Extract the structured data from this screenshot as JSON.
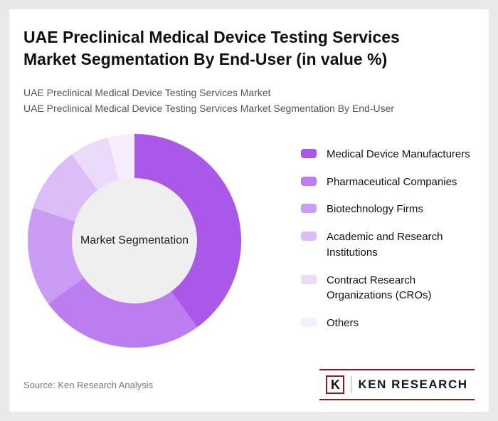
{
  "header": {
    "title": "UAE Preclinical Medical Device Testing Services Market Segmentation By End-User (in value %)",
    "subtitle1": "UAE Preclinical Medical Device Testing Services Market",
    "subtitle2": "UAE Preclinical Medical Device Testing Services Market Segmentation By End-User"
  },
  "chart_data": {
    "type": "pie",
    "donut": true,
    "title": "UAE Preclinical Medical Device Testing Services Market Segmentation By End-User (in value %)",
    "center_label": "Market Segmentation",
    "legend_position": "right",
    "center_fill": "#efefef",
    "segments": [
      {
        "label": "Medical Device Manufacturers",
        "value": 40,
        "color": "#a958e8"
      },
      {
        "label": "Pharmaceutical Companies",
        "value": 25,
        "color": "#bb7df0"
      },
      {
        "label": "Biotechnology Firms",
        "value": 15,
        "color": "#cb9cf3"
      },
      {
        "label": "Academic and Research Institutions",
        "value": 10,
        "color": "#dcbdf7"
      },
      {
        "label": "Contract Research Organizations (CROs)",
        "value": 6,
        "color": "#ebdafa"
      },
      {
        "label": "Others",
        "value": 4,
        "color": "#f6eefd"
      }
    ]
  },
  "footer": {
    "source": "Source: Ken Research Analysis",
    "logo": {
      "k": "K",
      "name": "KEN RESEARCH"
    }
  }
}
